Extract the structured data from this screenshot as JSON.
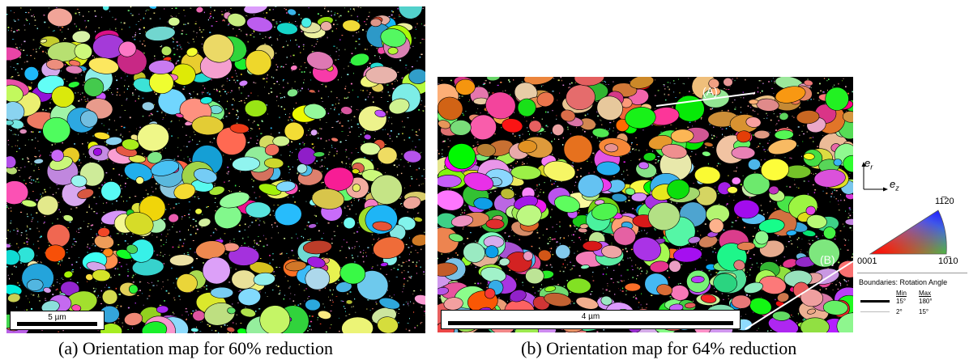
{
  "panel_a": {
    "scale_label": "5 µm",
    "caption": "(a) Orientation map for 60% reduction"
  },
  "panel_b": {
    "scale_label": "4 µm",
    "caption": "(b) Orientation map for 64% reduction",
    "line_a_label": "(A)",
    "line_b_label": "(B)"
  },
  "legend": {
    "axis_r": "e",
    "axis_r_sub": "r",
    "axis_z": "e",
    "axis_z_sub": "z",
    "ipf_top": "11̅20",
    "ipf_left": "0001",
    "ipf_right": "10̅10",
    "boundaries_title": "Boundaries: Rotation Angle",
    "col_min": "Min",
    "col_max": "Max",
    "row1_min": "15°",
    "row1_max": "180°",
    "row2_min": "2°",
    "row2_max": "15°"
  }
}
